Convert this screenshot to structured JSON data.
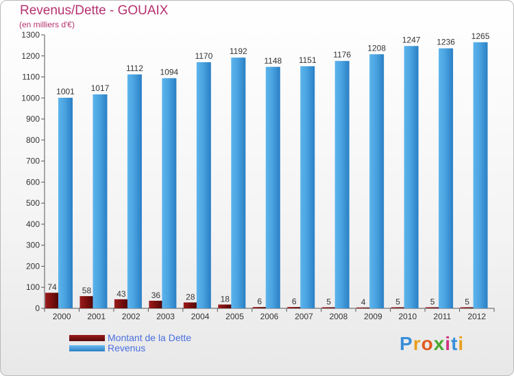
{
  "title": "Revenus/Dette - GOUAIX",
  "subtitle": "(en milliers d'€)",
  "logo": {
    "text": "Proxiti",
    "letter_colors": [
      "#3a8fd8",
      "#e8a020",
      "#e05a20",
      "#4aa830",
      "#d03080",
      "#3a8fd8",
      "#e8a020"
    ]
  },
  "colors": {
    "dette": "#7a0e0e",
    "revenus": "#4aa3e0",
    "title": "#b5306f",
    "legend_text": "#4a6fe0"
  },
  "chart_data": {
    "type": "bar",
    "categories": [
      "2000",
      "2001",
      "2002",
      "2003",
      "2004",
      "2005",
      "2006",
      "2007",
      "2008",
      "2009",
      "2010",
      "2011",
      "2012"
    ],
    "series": [
      {
        "name": "Montant de la Dette",
        "values": [
          74,
          58,
          43,
          36,
          28,
          18,
          6,
          6,
          5,
          4,
          5,
          5,
          5
        ]
      },
      {
        "name": "Revenus",
        "values": [
          1001,
          1017,
          1112,
          1094,
          1170,
          1192,
          1148,
          1151,
          1176,
          1208,
          1247,
          1236,
          1265
        ]
      }
    ],
    "title": "Revenus/Dette - GOUAIX",
    "subtitle": "(en milliers d'€)",
    "ylim": [
      0,
      1300
    ],
    "yticks": [
      0,
      100,
      200,
      300,
      400,
      500,
      600,
      700,
      800,
      900,
      1000,
      1100,
      1200,
      1300
    ],
    "grid": false,
    "legend_position": "bottom-left"
  }
}
